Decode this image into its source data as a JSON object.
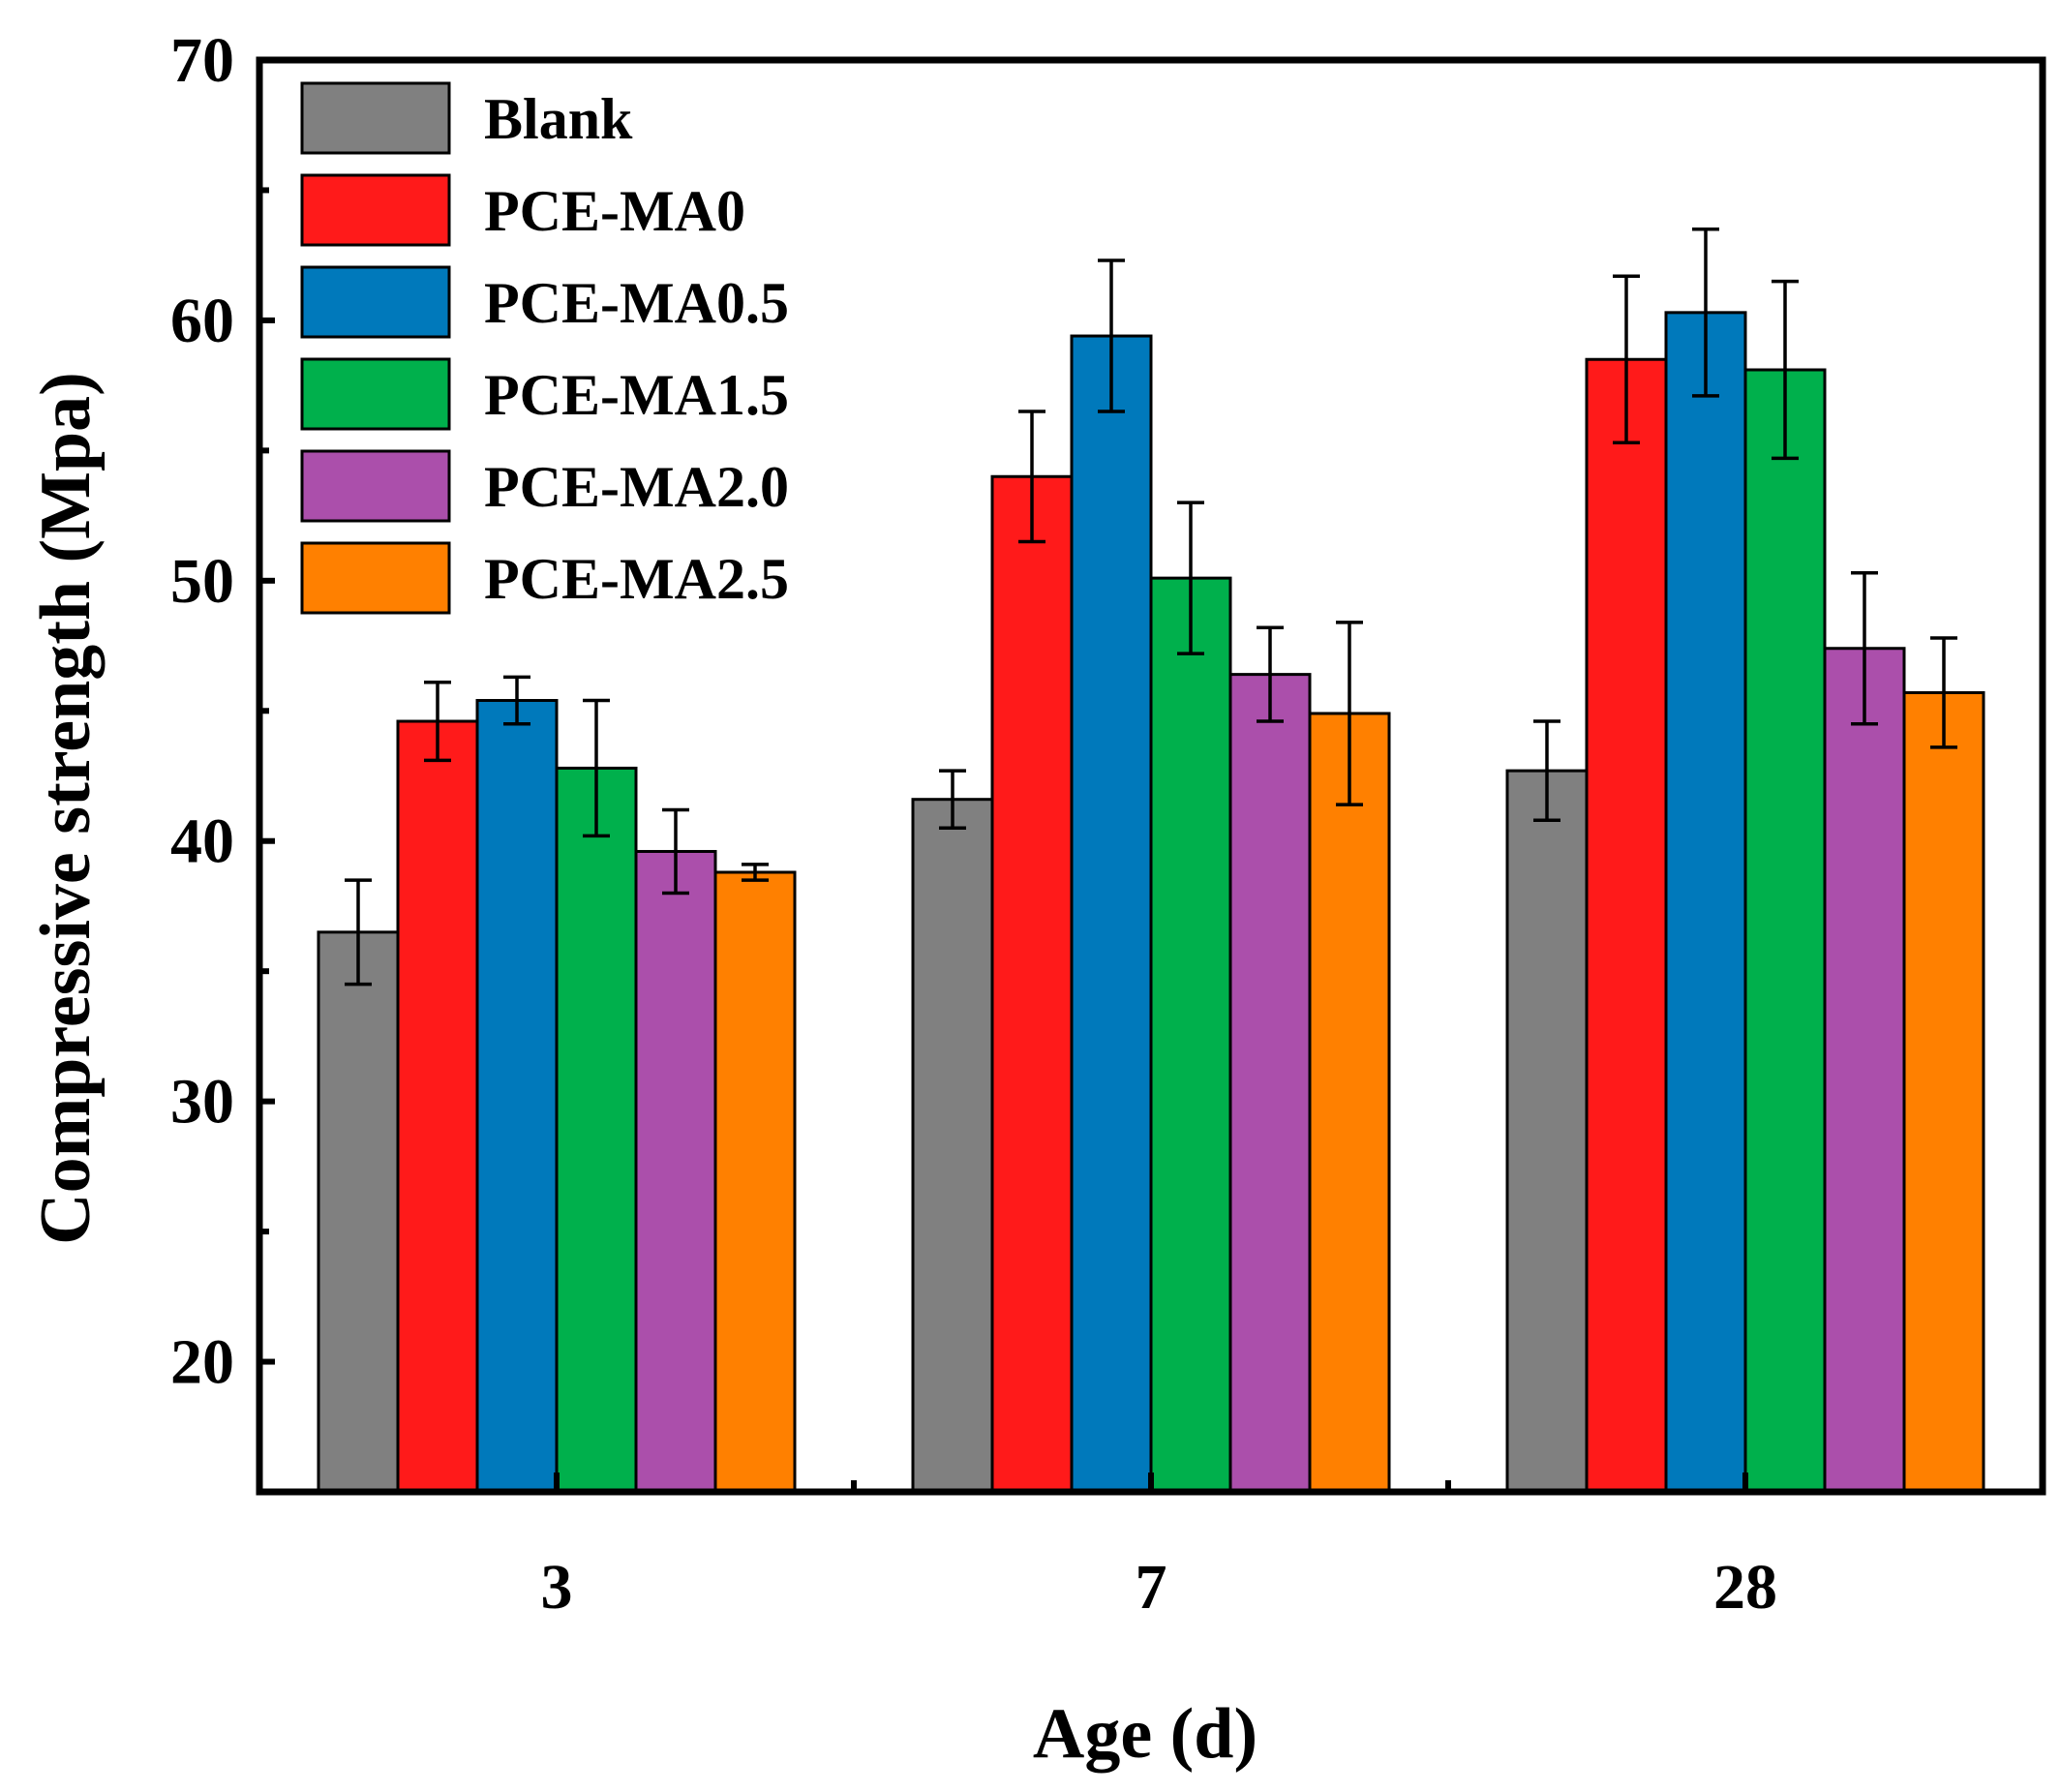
{
  "chart_data": {
    "type": "bar",
    "title": "",
    "xlabel": "Age (d)",
    "ylabel": "Compressive strength (Mpa)",
    "categories": [
      "3",
      "7",
      "28"
    ],
    "ylim": [
      15,
      70
    ],
    "yticks": [
      20,
      30,
      40,
      50,
      60,
      70
    ],
    "legend_position": "top-left",
    "series": [
      {
        "name": "Blank",
        "color": "#808080",
        "values": [
          36.5,
          41.6,
          42.7
        ],
        "errors": [
          2.0,
          1.1,
          1.9
        ]
      },
      {
        "name": "PCE-MA0",
        "color": "#ff1a1a",
        "values": [
          44.6,
          54.0,
          58.5
        ],
        "errors": [
          1.5,
          2.5,
          3.2
        ]
      },
      {
        "name": "PCE-MA0.5",
        "color": "#0079bb",
        "values": [
          45.4,
          59.4,
          60.3
        ],
        "errors": [
          0.9,
          2.9,
          3.2
        ]
      },
      {
        "name": "PCE-MA1.5",
        "color": "#00b04c",
        "values": [
          42.8,
          50.1,
          58.1
        ],
        "errors": [
          2.6,
          2.9,
          3.4
        ]
      },
      {
        "name": "PCE-MA2.0",
        "color": "#ab4fab",
        "values": [
          39.6,
          46.4,
          47.4
        ],
        "errors": [
          1.6,
          1.8,
          2.9
        ]
      },
      {
        "name": "PCE-MA2.5",
        "color": "#ff8000",
        "values": [
          38.8,
          44.9,
          45.7
        ],
        "errors": [
          0.3,
          3.5,
          2.1
        ]
      }
    ]
  }
}
